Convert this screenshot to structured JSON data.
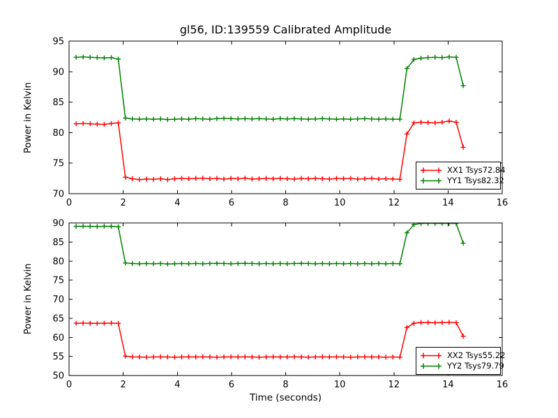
{
  "title": "gl56, ID:139559 Calibrated Amplitude",
  "colors": {
    "xx": "#ff0000",
    "yy": "#008000",
    "frame": "#000000",
    "background": "#ffffff",
    "text": "#000000"
  },
  "chart_data": [
    {
      "type": "line",
      "ylabel": "Power in Kelvin",
      "xlabel": "",
      "xlim": [
        0,
        16
      ],
      "ylim": [
        70,
        95
      ],
      "xticks": [
        0,
        2,
        4,
        6,
        8,
        10,
        12,
        14,
        16
      ],
      "yticks": [
        70,
        75,
        80,
        85,
        90,
        95
      ],
      "grid": false,
      "legend_position": "lower right",
      "marker": "+",
      "x": [
        0.26,
        0.52,
        0.78,
        1.04,
        1.3,
        1.56,
        1.82,
        2.08,
        2.34,
        2.6,
        2.86,
        3.12,
        3.38,
        3.64,
        3.9,
        4.16,
        4.42,
        4.68,
        4.94,
        5.2,
        5.46,
        5.72,
        5.98,
        6.24,
        6.5,
        6.76,
        7.02,
        7.28,
        7.54,
        7.8,
        8.06,
        8.32,
        8.58,
        8.84,
        9.1,
        9.36,
        9.62,
        9.88,
        10.14,
        10.4,
        10.66,
        10.92,
        11.18,
        11.44,
        11.7,
        11.96,
        12.22,
        12.48,
        12.74,
        13.0,
        13.26,
        13.52,
        13.78,
        14.04,
        14.3,
        14.56
      ],
      "series": [
        {
          "name": "XX1 Tsys72.84",
          "color": "#ff0000",
          "values": [
            81.45,
            81.5,
            81.45,
            81.4,
            81.35,
            81.5,
            81.6,
            72.7,
            72.45,
            72.3,
            72.4,
            72.35,
            72.45,
            72.3,
            72.45,
            72.5,
            72.45,
            72.5,
            72.55,
            72.45,
            72.5,
            72.4,
            72.5,
            72.45,
            72.55,
            72.4,
            72.45,
            72.5,
            72.45,
            72.5,
            72.45,
            72.4,
            72.5,
            72.45,
            72.5,
            72.45,
            72.4,
            72.5,
            72.45,
            72.5,
            72.4,
            72.45,
            72.5,
            72.4,
            72.45,
            72.4,
            72.35,
            79.8,
            81.6,
            81.7,
            81.65,
            81.6,
            81.7,
            81.9,
            81.7,
            77.6
          ]
        },
        {
          "name": "YY1 Tsys82.32",
          "color": "#008000",
          "values": [
            92.35,
            92.4,
            92.35,
            92.3,
            92.25,
            92.3,
            92.05,
            82.4,
            82.25,
            82.2,
            82.25,
            82.2,
            82.25,
            82.15,
            82.2,
            82.25,
            82.2,
            82.3,
            82.25,
            82.2,
            82.3,
            82.35,
            82.3,
            82.25,
            82.3,
            82.25,
            82.3,
            82.25,
            82.2,
            82.3,
            82.25,
            82.3,
            82.25,
            82.2,
            82.25,
            82.3,
            82.25,
            82.2,
            82.25,
            82.2,
            82.25,
            82.3,
            82.25,
            82.2,
            82.25,
            82.2,
            82.2,
            90.5,
            92.0,
            92.2,
            92.3,
            92.35,
            92.3,
            92.4,
            92.35,
            87.7
          ]
        }
      ]
    },
    {
      "type": "line",
      "ylabel": "Power in Kelvin",
      "xlabel": "Time (seconds)",
      "xlim": [
        0,
        16
      ],
      "ylim": [
        50,
        90
      ],
      "xticks": [
        0,
        2,
        4,
        6,
        8,
        10,
        12,
        14,
        16
      ],
      "yticks": [
        50,
        55,
        60,
        65,
        70,
        75,
        80,
        85,
        90
      ],
      "grid": false,
      "legend_position": "lower right",
      "marker": "+",
      "x": [
        0.26,
        0.52,
        0.78,
        1.04,
        1.3,
        1.56,
        1.82,
        2.08,
        2.34,
        2.6,
        2.86,
        3.12,
        3.38,
        3.64,
        3.9,
        4.16,
        4.42,
        4.68,
        4.94,
        5.2,
        5.46,
        5.72,
        5.98,
        6.24,
        6.5,
        6.76,
        7.02,
        7.28,
        7.54,
        7.8,
        8.06,
        8.32,
        8.58,
        8.84,
        9.1,
        9.36,
        9.62,
        9.88,
        10.14,
        10.4,
        10.66,
        10.92,
        11.18,
        11.44,
        11.7,
        11.96,
        12.22,
        12.48,
        12.74,
        13.0,
        13.26,
        13.52,
        13.78,
        14.04,
        14.3,
        14.56
      ],
      "series": [
        {
          "name": "XX2 Tsys55.22",
          "color": "#ff0000",
          "values": [
            63.7,
            63.75,
            63.7,
            63.65,
            63.7,
            63.75,
            63.65,
            55.1,
            54.9,
            54.85,
            54.8,
            54.85,
            54.9,
            54.85,
            54.8,
            54.85,
            54.9,
            54.85,
            54.9,
            54.85,
            54.8,
            54.85,
            54.9,
            54.85,
            54.9,
            54.85,
            54.8,
            54.85,
            54.9,
            54.85,
            54.85,
            54.9,
            54.85,
            54.8,
            54.85,
            54.9,
            54.85,
            54.9,
            54.85,
            54.8,
            54.85,
            54.9,
            54.85,
            54.85,
            54.8,
            54.85,
            54.8,
            62.6,
            63.7,
            63.9,
            63.9,
            63.85,
            63.9,
            63.95,
            63.85,
            60.3
          ]
        },
        {
          "name": "YY2 Tsys79.79",
          "color": "#008000",
          "values": [
            89.1,
            89.15,
            89.1,
            89.05,
            89.15,
            89.1,
            89.0,
            79.5,
            79.35,
            79.3,
            79.35,
            79.3,
            79.35,
            79.25,
            79.3,
            79.35,
            79.3,
            79.35,
            79.3,
            79.35,
            79.4,
            79.35,
            79.3,
            79.35,
            79.4,
            79.35,
            79.3,
            79.35,
            79.3,
            79.35,
            79.3,
            79.35,
            79.4,
            79.35,
            79.3,
            79.35,
            79.3,
            79.35,
            79.3,
            79.35,
            79.3,
            79.35,
            79.3,
            79.35,
            79.3,
            79.35,
            79.3,
            87.4,
            89.6,
            89.85,
            89.9,
            89.9,
            89.85,
            89.9,
            89.85,
            84.7
          ]
        }
      ]
    }
  ]
}
